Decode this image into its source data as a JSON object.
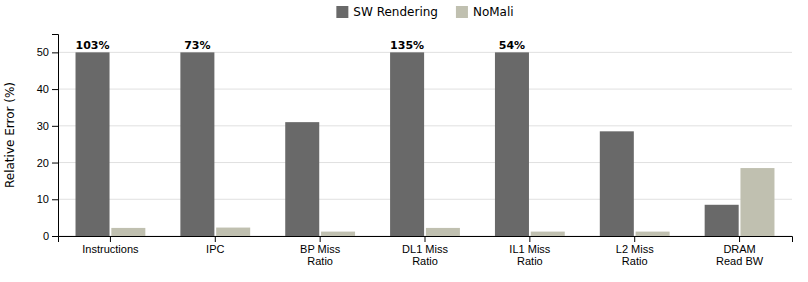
{
  "chart_data": {
    "type": "bar",
    "categories": [
      "Instructions",
      "IPC",
      "BP Miss\nRatio",
      "DL1 Miss\nRatio",
      "IL1 Miss\nRatio",
      "L2 Miss\nRatio",
      "DRAM\nRead BW"
    ],
    "series": [
      {
        "name": "SW Rendering",
        "color": "#696969",
        "values": [
          50,
          50,
          31,
          50,
          50,
          28.5,
          8.5
        ]
      },
      {
        "name": "NoMali",
        "color": "#c0c0b0",
        "values": [
          2.2,
          2.3,
          1.2,
          2.2,
          1.2,
          1.2,
          18.5
        ]
      }
    ],
    "annotations": [
      "103%",
      "73%",
      null,
      "135%",
      "54%",
      null,
      null
    ],
    "ylabel": "Relative Error (%)",
    "ylim": [
      0,
      55
    ],
    "yticks": [
      0,
      10,
      20,
      30,
      40,
      50
    ],
    "grid": true,
    "legend": "top"
  }
}
